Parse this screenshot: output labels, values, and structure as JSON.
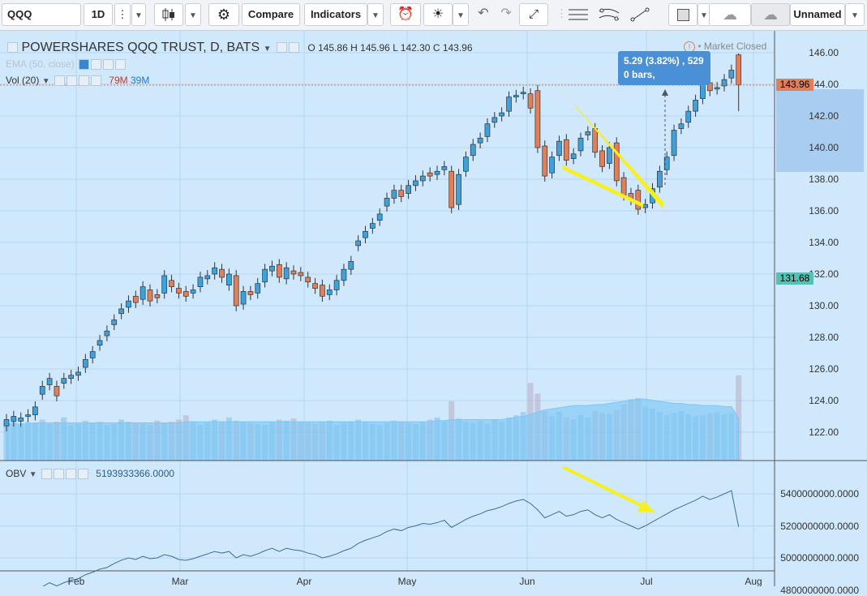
{
  "toolbar": {
    "symbol": "QQQ",
    "interval": "1D",
    "compare": "Compare",
    "indicators": "Indicators",
    "layout_name": "Unnamed"
  },
  "legend": {
    "title": "POWERSHARES QQQ TRUST, D, BATS",
    "o_label": "O",
    "o": "145.86",
    "h_label": "H",
    "h": "145.96",
    "l_label": "L",
    "l": "142.30",
    "c_label": "C",
    "c": "143.96",
    "ema": "EMA (50, close)",
    "vol": "Vol (20)",
    "vol_val1": "79M",
    "vol_val2": "39M",
    "obv": "OBV",
    "obv_val": "5193933366.0000",
    "market_status": "Market Closed"
  },
  "tooltip": {
    "line1": "5.29 (3.82%) , 529",
    "line2": "0 bars,"
  },
  "price_tags": {
    "last": "143.96",
    "ema": "131.68"
  },
  "colors": {
    "up": "#3ea1dc",
    "down": "#e07f5a",
    "bg": "#cfe8fb",
    "annotation": "#f7f01c",
    "obv_line": "#3c6d9a",
    "vol_ma": "#7ec7f5"
  },
  "chart_data": {
    "type": "candlestick",
    "symbol": "QQQ",
    "price_ticks": [
      "146.00",
      "144.00",
      "142.00",
      "140.00",
      "138.00",
      "136.00",
      "134.00",
      "132.00",
      "130.00",
      "128.00",
      "126.00",
      "124.00",
      "122.00"
    ],
    "obv_ticks": [
      "5400000000.0000",
      "5200000000.0000",
      "5000000000.0000",
      "4800000000.0000"
    ],
    "x_ticks": [
      "Feb",
      "Mar",
      "Apr",
      "May",
      "Jun",
      "Jul",
      "Aug"
    ],
    "ylim": [
      121,
      147
    ],
    "last_bar": {
      "open": 145.86,
      "high": 145.96,
      "low": 142.3,
      "close": 143.96
    },
    "closes": [
      122.8,
      123.0,
      122.9,
      123.1,
      123.6,
      124.9,
      125.4,
      124.3,
      125.4,
      125.6,
      125.8,
      126.6,
      127.1,
      127.8,
      128.4,
      129.1,
      129.8,
      130.3,
      130.2,
      131.2,
      130.3,
      130.5,
      131.9,
      131.2,
      130.8,
      130.6,
      131.0,
      131.8,
      131.9,
      132.4,
      131.8,
      132.0,
      130.0,
      130.9,
      130.7,
      131.4,
      132.3,
      132.5,
      131.8,
      132.4,
      132.0,
      131.9,
      131.5,
      131.1,
      130.6,
      131.0,
      131.6,
      132.3,
      132.8,
      134.1,
      134.7,
      135.2,
      135.8,
      136.8,
      137.3,
      136.9,
      137.6,
      137.9,
      138.2,
      138.2,
      138.5,
      138.8,
      136.2,
      138.3,
      139.4,
      140.2,
      140.6,
      141.5,
      141.9,
      142.2,
      143.2,
      143.3,
      143.5,
      142.5,
      140.0,
      138.2,
      139.4,
      140.4,
      139.2,
      139.6,
      140.6,
      141.0,
      139.7,
      138.8,
      140.0,
      137.9,
      137.0,
      136.7,
      136.1,
      136.4,
      137.4,
      138.5,
      139.4,
      141.1,
      141.5,
      142.3,
      143.0,
      144.0,
      143.6,
      143.8,
      144.3,
      144.9,
      143.96
    ],
    "opens": [
      122.4,
      122.7,
      122.7,
      123.0,
      123.1,
      124.4,
      125.0,
      124.9,
      125.1,
      125.4,
      125.6,
      126.1,
      126.7,
      127.5,
      128.1,
      128.8,
      129.5,
      129.9,
      130.6,
      130.4,
      131.0,
      130.7,
      130.8,
      131.6,
      131.1,
      130.9,
      130.8,
      131.2,
      131.7,
      132.0,
      132.3,
      131.3,
      131.9,
      130.1,
      130.9,
      130.8,
      131.5,
      132.2,
      132.6,
      131.7,
      132.2,
      132.1,
      131.8,
      131.4,
      131.3,
      130.7,
      131.0,
      131.6,
      132.3,
      133.8,
      134.3,
      134.9,
      135.4,
      136.3,
      136.8,
      137.3,
      137.1,
      137.6,
      137.9,
      138.4,
      138.3,
      138.6,
      138.5,
      136.4,
      138.5,
      139.5,
      140.3,
      140.7,
      141.6,
      142.0,
      142.3,
      143.2,
      143.4,
      143.4,
      143.6,
      140.1,
      138.4,
      139.5,
      140.5,
      139.3,
      139.8,
      140.8,
      141.2,
      139.8,
      139.0,
      140.3,
      138.1,
      137.1,
      137.3,
      136.2,
      136.5,
      137.5,
      138.6,
      139.5,
      141.2,
      141.6,
      142.3,
      143.1,
      144.1,
      143.7,
      143.9,
      144.4,
      145.86
    ],
    "volumes_m": [
      35,
      39,
      33,
      36,
      35,
      38,
      34,
      36,
      40,
      33,
      34,
      37,
      35,
      36,
      33,
      34,
      38,
      36,
      35,
      34,
      33,
      37,
      35,
      36,
      38,
      42,
      36,
      33,
      35,
      38,
      36,
      40,
      37,
      36,
      35,
      34,
      33,
      36,
      38,
      37,
      39,
      36,
      35,
      34,
      36,
      37,
      33,
      35,
      36,
      38,
      36,
      34,
      33,
      35,
      37,
      36,
      35,
      34,
      36,
      38,
      40,
      36,
      55,
      39,
      36,
      35,
      37,
      34,
      38,
      36,
      40,
      42,
      45,
      72,
      62,
      46,
      41,
      45,
      40,
      38,
      42,
      40,
      46,
      44,
      43,
      47,
      52,
      57,
      58,
      50,
      48,
      45,
      42,
      44,
      46,
      43,
      41,
      42,
      44,
      45,
      43,
      44,
      79
    ],
    "volume_ma_m": [
      34,
      34,
      34,
      34,
      35,
      35,
      35,
      35,
      35,
      35,
      35,
      35,
      35,
      35,
      35,
      35,
      35,
      35,
      35,
      35,
      35,
      35,
      35,
      35,
      35,
      36,
      36,
      36,
      36,
      36,
      36,
      36,
      36,
      36,
      36,
      36,
      36,
      36,
      36,
      36,
      36,
      36,
      36,
      36,
      36,
      36,
      36,
      36,
      36,
      36,
      36,
      36,
      36,
      36,
      36,
      36,
      36,
      36,
      36,
      36,
      37,
      37,
      38,
      38,
      38,
      38,
      38,
      38,
      38,
      38,
      39,
      40,
      41,
      43,
      45,
      47,
      48,
      49,
      50,
      51,
      51,
      51,
      52,
      52,
      53,
      54,
      55,
      56,
      57,
      57,
      56,
      55,
      54,
      53,
      53,
      52,
      52,
      51,
      51,
      51,
      50,
      50,
      39
    ],
    "obv": [
      4760,
      4770,
      4775,
      4790,
      4800,
      4820,
      4845,
      4825,
      4845,
      4860,
      4870,
      4895,
      4910,
      4930,
      4940,
      4965,
      4985,
      5000,
      4990,
      5010,
      4995,
      5000,
      5020,
      5010,
      4990,
      4985,
      4995,
      5010,
      5025,
      5040,
      5030,
      5040,
      5000,
      5020,
      5010,
      5025,
      5045,
      5060,
      5040,
      5060,
      5050,
      5045,
      5030,
      5020,
      5000,
      5010,
      5025,
      5045,
      5060,
      5090,
      5110,
      5125,
      5140,
      5165,
      5180,
      5170,
      5190,
      5200,
      5215,
      5210,
      5220,
      5235,
      5190,
      5215,
      5240,
      5260,
      5275,
      5295,
      5305,
      5320,
      5340,
      5355,
      5365,
      5340,
      5300,
      5250,
      5270,
      5290,
      5260,
      5270,
      5290,
      5300,
      5270,
      5250,
      5270,
      5240,
      5220,
      5200,
      5180,
      5200,
      5225,
      5250,
      5275,
      5300,
      5320,
      5340,
      5360,
      5385,
      5365,
      5380,
      5400,
      5420,
      5194
    ]
  }
}
